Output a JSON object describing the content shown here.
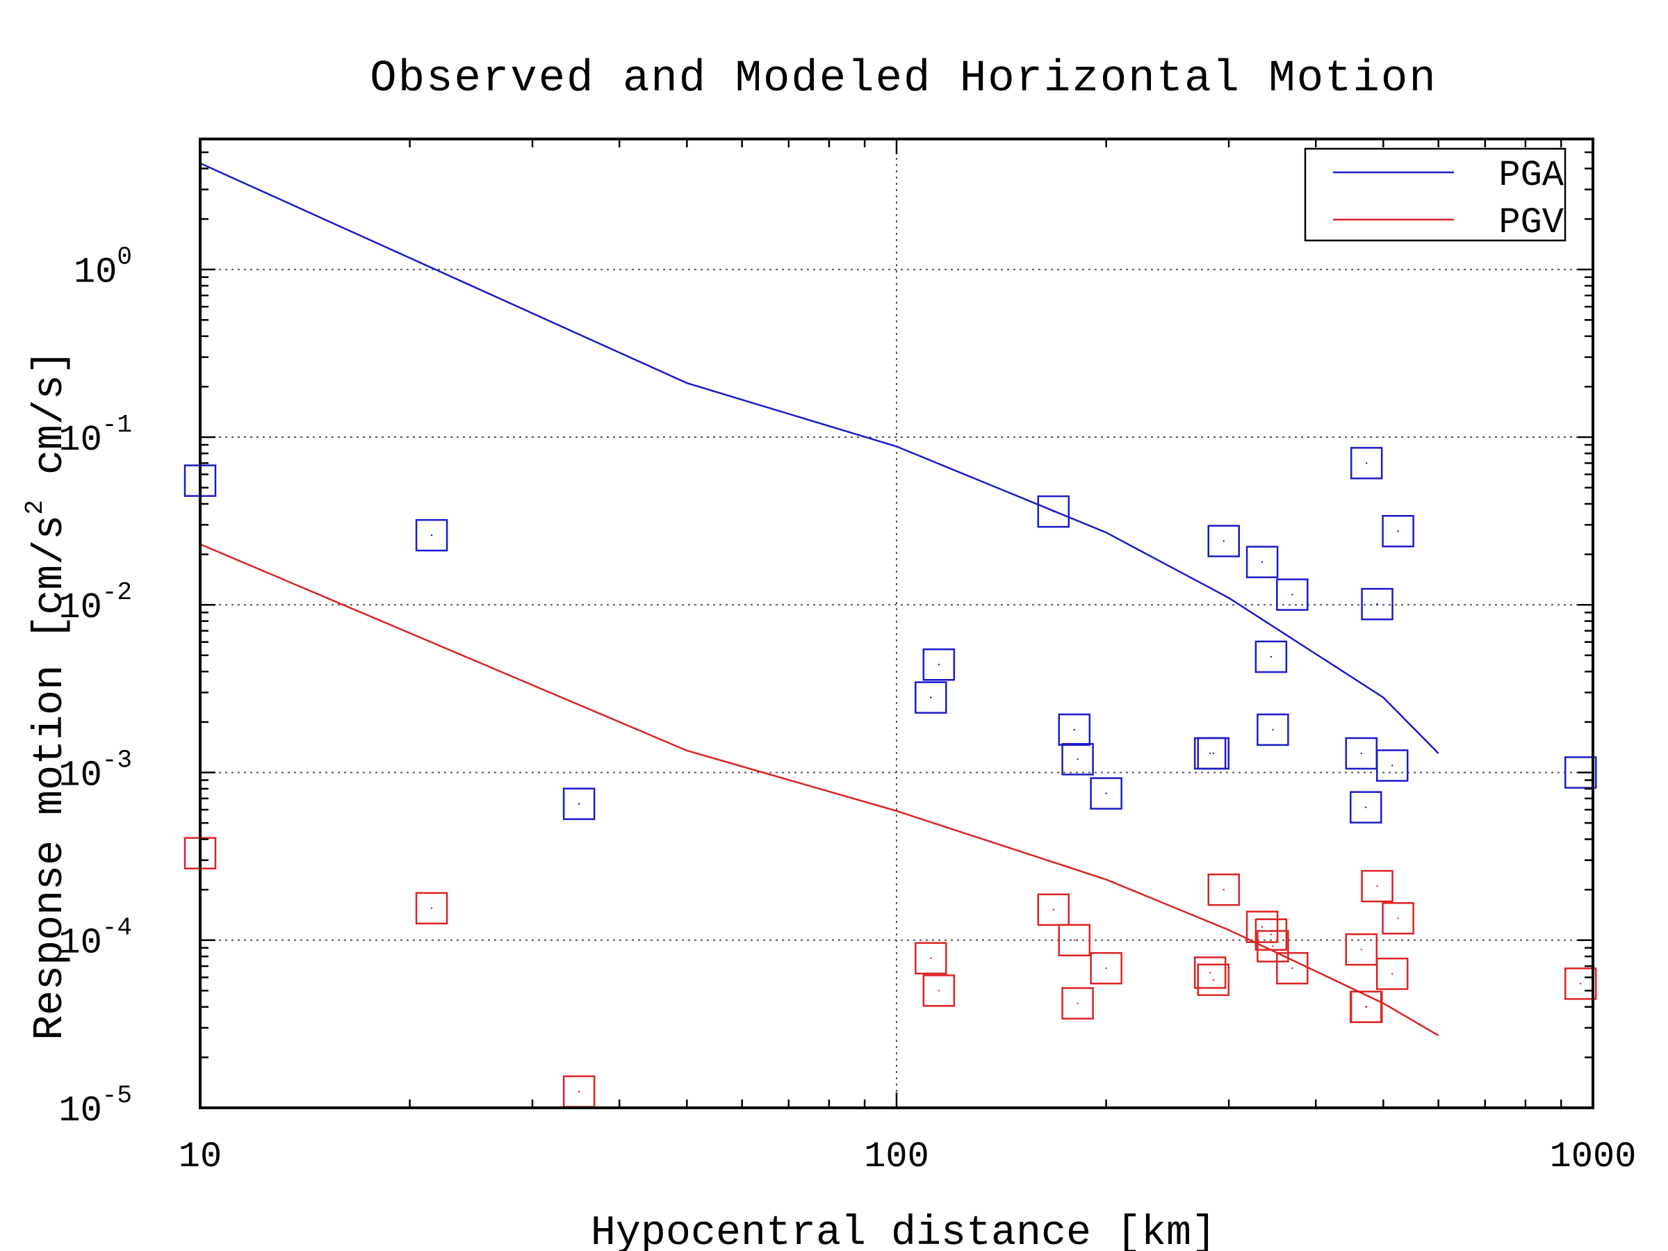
{
  "chart_data": {
    "type": "scatter",
    "title": "Observed and Modeled Horizontal Motion",
    "xlabel": "Hypocentral distance [km]",
    "ylabel": "Response motion [cm/s² cm/s]",
    "ylabel_parts": {
      "main": "Response motion [cm/s",
      "sup": "2",
      "tail": " cm/s]"
    },
    "xscale": "log",
    "yscale": "log",
    "xlim": [
      10,
      1000
    ],
    "ylim": [
      1e-05,
      6
    ],
    "x_ticks": [
      10,
      100,
      1000
    ],
    "x_tick_labels": [
      "10",
      "100",
      "1000"
    ],
    "y_ticks": [
      {
        "value": 1e-05,
        "base": "10",
        "exp": "-5"
      },
      {
        "value": 0.0001,
        "base": "10",
        "exp": "-4"
      },
      {
        "value": 0.001,
        "base": "10",
        "exp": "-3"
      },
      {
        "value": 0.01,
        "base": "10",
        "exp": "-2"
      },
      {
        "value": 0.1,
        "base": "10",
        "exp": "-1"
      },
      {
        "value": 1,
        "base": "10",
        "exp": "0"
      }
    ],
    "grid": true,
    "legend": {
      "placement": "top-right"
    },
    "colors": {
      "PGA": "#1a1acc",
      "PGV": "#dd2222"
    },
    "lines": [
      {
        "name": "PGA",
        "color": "#1a1acc",
        "points": [
          [
            10,
            4.3
          ],
          [
            50,
            0.21
          ],
          [
            100,
            0.088
          ],
          [
            200,
            0.027
          ],
          [
            300,
            0.011
          ],
          [
            500,
            0.0028
          ],
          [
            600,
            0.0013
          ]
        ]
      },
      {
        "name": "PGV",
        "color": "#dd2222",
        "points": [
          [
            10,
            0.023
          ],
          [
            50,
            0.00135
          ],
          [
            100,
            0.00059
          ],
          [
            200,
            0.00023
          ],
          [
            300,
            0.000115
          ],
          [
            500,
            4.2e-05
          ],
          [
            600,
            2.7e-05
          ]
        ]
      }
    ],
    "markers": [
      {
        "series": "PGA",
        "color": "#1a1acc",
        "points": [
          [
            10,
            0.055
          ],
          [
            21.5,
            0.026
          ],
          [
            35,
            0.00065
          ],
          [
            112,
            0.0028
          ],
          [
            115,
            0.0044
          ],
          [
            168,
            0.036
          ],
          [
            180,
            0.0018
          ],
          [
            182,
            0.0012
          ],
          [
            200,
            0.00075
          ],
          [
            282,
            0.0013
          ],
          [
            285,
            0.0013
          ],
          [
            295,
            0.024
          ],
          [
            335,
            0.018
          ],
          [
            345,
            0.0049
          ],
          [
            347,
            0.0018
          ],
          [
            370,
            0.0115
          ],
          [
            465,
            0.0013
          ],
          [
            472,
            0.00062
          ],
          [
            473,
            0.07
          ],
          [
            490,
            0.0101
          ],
          [
            515,
            0.0011
          ],
          [
            525,
            0.0275
          ],
          [
            960,
            0.001
          ]
        ]
      },
      {
        "series": "PGV",
        "color": "#dd2222",
        "points": [
          [
            10,
            0.00033
          ],
          [
            21.5,
            0.000155
          ],
          [
            35,
            1.25e-05
          ],
          [
            112,
            7.8e-05
          ],
          [
            115,
            5e-05
          ],
          [
            168,
            0.000152
          ],
          [
            180,
            0.0001
          ],
          [
            182,
            4.2e-05
          ],
          [
            200,
            6.8e-05
          ],
          [
            282,
            6.4e-05
          ],
          [
            285,
            5.8e-05
          ],
          [
            295,
            0.0002
          ],
          [
            335,
            0.00012
          ],
          [
            345,
            0.000108
          ],
          [
            347,
            9.2e-05
          ],
          [
            370,
            6.8e-05
          ],
          [
            465,
            8.8e-05
          ],
          [
            472,
            4e-05
          ],
          [
            473,
            4e-05
          ],
          [
            490,
            0.00021
          ],
          [
            515,
            6.3e-05
          ],
          [
            525,
            0.000135
          ],
          [
            960,
            5.5e-05
          ]
        ]
      }
    ]
  }
}
